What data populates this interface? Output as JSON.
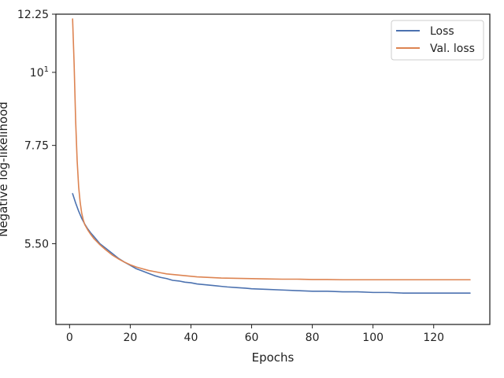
{
  "chart_data": {
    "type": "line",
    "xlabel": "Epochs",
    "ylabel": "Negative log-likelihood",
    "xlim": [
      -4.5,
      138.5
    ],
    "ylim": [
      4.15,
      12.25
    ],
    "yscale": "log",
    "grid": false,
    "legend_position": "top-right",
    "x_ticks": [
      0,
      20,
      40,
      60,
      80,
      100,
      120
    ],
    "x_tick_labels": [
      "0",
      "20",
      "40",
      "60",
      "80",
      "100",
      "120"
    ],
    "y_ticks": [
      5.5,
      7.75,
      10,
      12.25
    ],
    "y_tick_labels": [
      "5.50",
      "7.75",
      "10",
      "12.25"
    ],
    "y_tick_exponent": {
      "tick": 10,
      "base": "10",
      "exponent": "1"
    },
    "series": [
      {
        "name": "Loss",
        "color": "#4c72b0",
        "x": [
          1,
          2,
          3,
          4,
          5,
          6,
          7,
          8,
          9,
          10,
          12,
          14,
          16,
          18,
          20,
          22,
          24,
          26,
          28,
          30,
          32,
          34,
          36,
          38,
          40,
          42,
          44,
          46,
          48,
          50,
          52,
          55,
          58,
          60,
          65,
          70,
          75,
          80,
          85,
          90,
          95,
          100,
          105,
          110,
          115,
          120,
          125,
          130,
          132
        ],
        "y": [
          6.55,
          6.34,
          6.16,
          6.01,
          5.89,
          5.79,
          5.71,
          5.64,
          5.57,
          5.5,
          5.41,
          5.32,
          5.23,
          5.16,
          5.1,
          5.04,
          5.0,
          4.96,
          4.92,
          4.89,
          4.87,
          4.84,
          4.83,
          4.81,
          4.8,
          4.78,
          4.77,
          4.76,
          4.75,
          4.74,
          4.73,
          4.72,
          4.71,
          4.7,
          4.69,
          4.68,
          4.67,
          4.66,
          4.66,
          4.65,
          4.65,
          4.64,
          4.64,
          4.63,
          4.63,
          4.63,
          4.63,
          4.63,
          4.63
        ]
      },
      {
        "name": "Val. loss",
        "color": "#dd8452",
        "x": [
          1,
          1.5,
          2,
          2.5,
          3,
          3.5,
          4,
          4.5,
          5,
          6,
          7,
          8,
          9,
          10,
          12,
          14,
          16,
          18,
          20,
          22,
          24,
          26,
          28,
          30,
          32,
          34,
          36,
          38,
          40,
          42,
          44,
          46,
          48,
          50,
          55,
          60,
          65,
          70,
          75,
          80,
          85,
          90,
          95,
          100,
          105,
          110,
          115,
          120,
          125,
          130,
          132
        ],
        "y": [
          12.05,
          10.3,
          8.45,
          7.35,
          6.7,
          6.35,
          6.12,
          5.98,
          5.88,
          5.77,
          5.68,
          5.6,
          5.54,
          5.48,
          5.38,
          5.29,
          5.22,
          5.16,
          5.11,
          5.07,
          5.04,
          5.01,
          4.99,
          4.97,
          4.95,
          4.94,
          4.93,
          4.92,
          4.91,
          4.9,
          4.895,
          4.89,
          4.885,
          4.88,
          4.875,
          4.87,
          4.865,
          4.86,
          4.86,
          4.855,
          4.855,
          4.85,
          4.85,
          4.85,
          4.85,
          4.85,
          4.85,
          4.85,
          4.85,
          4.85,
          4.85
        ]
      }
    ]
  }
}
